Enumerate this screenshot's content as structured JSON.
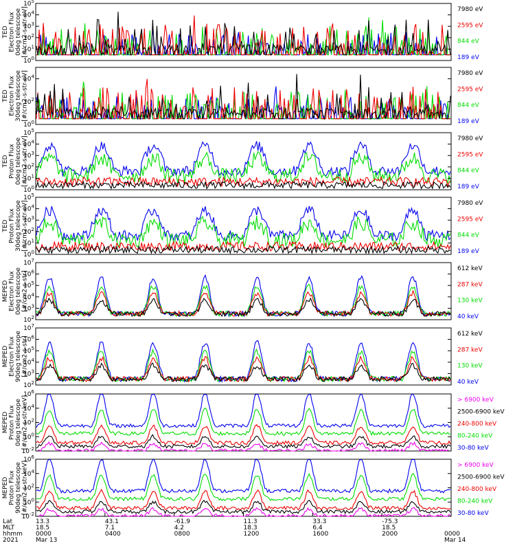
{
  "chart_data": {
    "type": "line",
    "x_axis": {
      "rows": [
        {
          "label": "Lat",
          "values": [
            "13.3",
            "43.1",
            "-61.9",
            "11.3",
            "33.3",
            "-75.3",
            ""
          ]
        },
        {
          "label": "MLT",
          "values": [
            "18.5",
            "7.1",
            "4.2",
            "18.3",
            "6.4",
            "18.5",
            ""
          ]
        },
        {
          "label": "hhmm",
          "values": [
            "0000",
            "0400",
            "0800",
            "1200",
            "1600",
            "2000",
            "0000"
          ]
        },
        {
          "label": "2021",
          "values": [
            "Mar 13",
            "",
            "",
            "",
            "",
            "",
            "Mar 14"
          ]
        }
      ]
    },
    "panels": [
      {
        "ylabel": [
          "TED",
          "Electron Flux",
          "0deg telescope",
          "[#/cm2-s-str-eV]"
        ],
        "yticks": [
          "10^0",
          "10^1",
          "10^2",
          "10^3",
          "10^4",
          "10^5"
        ],
        "ylim_exp": [
          0,
          5
        ],
        "legend": [
          {
            "name": "7980 eV",
            "color": "#000000"
          },
          {
            "name": "2595 eV",
            "color": "#ee0000"
          },
          {
            "name": "844 eV",
            "color": "#00dd00"
          },
          {
            "name": "189 eV",
            "color": "#0000ee"
          }
        ]
      },
      {
        "ylabel": [
          "TED",
          "Electron Flux",
          "30deg telescope",
          "[#/cm2-s-str-eV]"
        ],
        "yticks": [
          "10^0",
          "10^2",
          "10^4"
        ],
        "ylim_exp": [
          0,
          5
        ],
        "legend": [
          {
            "name": "7980 eV",
            "color": "#000000"
          },
          {
            "name": "2595 eV",
            "color": "#ee0000"
          },
          {
            "name": "844 eV",
            "color": "#00dd00"
          },
          {
            "name": "189 eV",
            "color": "#0000ee"
          }
        ]
      },
      {
        "ylabel": [
          "TED",
          "Proton Flux",
          "0deg telescope",
          "[#/cm2-s-str-eV]"
        ],
        "yticks": [
          "10^0",
          "10^1",
          "10^2",
          "10^3",
          "10^4",
          "10^5"
        ],
        "ylim_exp": [
          0,
          5
        ],
        "legend": [
          {
            "name": "7980 eV",
            "color": "#000000"
          },
          {
            "name": "2595 eV",
            "color": "#ee0000"
          },
          {
            "name": "844 eV",
            "color": "#00dd00"
          },
          {
            "name": "189 eV",
            "color": "#0000ee"
          }
        ]
      },
      {
        "ylabel": [
          "TED",
          "Proton Flux",
          "30deg telescope",
          "[#/cm2-s-str-eV]"
        ],
        "yticks": [
          "10^0",
          "10^1",
          "10^2",
          "10^3",
          "10^4",
          "10^5"
        ],
        "ylim_exp": [
          0,
          5
        ],
        "legend": [
          {
            "name": "7980 eV",
            "color": "#000000"
          },
          {
            "name": "2595 eV",
            "color": "#ee0000"
          },
          {
            "name": "844 eV",
            "color": "#00dd00"
          },
          {
            "name": "189 eV",
            "color": "#0000ee"
          }
        ]
      },
      {
        "ylabel": [
          "MEPED",
          "Electron Flux",
          "0deg telescope",
          "[#/cm2-s-str]"
        ],
        "yticks": [
          "10^2",
          "10^3",
          "10^4",
          "10^5",
          "10^6",
          "10^7"
        ],
        "ylim_exp": [
          2,
          7
        ],
        "legend": [
          {
            "name": "612 keV",
            "color": "#000000"
          },
          {
            "name": "287 keV",
            "color": "#ee0000"
          },
          {
            "name": "130 keV",
            "color": "#00dd00"
          },
          {
            "name": "40 keV",
            "color": "#0000ee"
          }
        ]
      },
      {
        "ylabel": [
          "MEPED",
          "Electron Flux",
          "90deg telescope",
          "[#/cm2-s-str]"
        ],
        "yticks": [
          "10^2",
          "10^3",
          "10^4",
          "10^5",
          "10^6",
          "10^7"
        ],
        "ylim_exp": [
          2,
          7
        ],
        "legend": [
          {
            "name": "612 keV",
            "color": "#000000"
          },
          {
            "name": "287 keV",
            "color": "#ee0000"
          },
          {
            "name": "130 keV",
            "color": "#00dd00"
          },
          {
            "name": "40 keV",
            "color": "#0000ee"
          }
        ]
      },
      {
        "ylabel": [
          "MEPED",
          "Proton Flux",
          "0deg telescope",
          "[#/cm2-s-str-keV]"
        ],
        "yticks": [
          "10^-2",
          "10^0",
          "10^2",
          "10^4",
          "10^6"
        ],
        "ylim_exp": [
          -2,
          6
        ],
        "legend": [
          {
            "name": "> 6900 keV",
            "color": "#ee00ee"
          },
          {
            "name": "2500-6900 keV",
            "color": "#000000"
          },
          {
            "name": "240-800 keV",
            "color": "#ee0000"
          },
          {
            "name": "80-240 keV",
            "color": "#00dd00"
          },
          {
            "name": "30-80 keV",
            "color": "#0000ee"
          }
        ]
      },
      {
        "ylabel": [
          "MEPED",
          "Proton Flux",
          "90deg telescope",
          "[#/cm2-s-str-keV]"
        ],
        "yticks": [
          "10^-2",
          "10^0",
          "10^2",
          "10^4",
          "10^6"
        ],
        "ylim_exp": [
          -2,
          6
        ],
        "legend": [
          {
            "name": "> 6900 keV",
            "color": "#ee00ee"
          },
          {
            "name": "2500-6900 keV",
            "color": "#000000"
          },
          {
            "name": "240-800 keV",
            "color": "#ee0000"
          },
          {
            "name": "80-240 keV",
            "color": "#00dd00"
          },
          {
            "name": "30-80 keV",
            "color": "#0000ee"
          }
        ]
      }
    ]
  }
}
